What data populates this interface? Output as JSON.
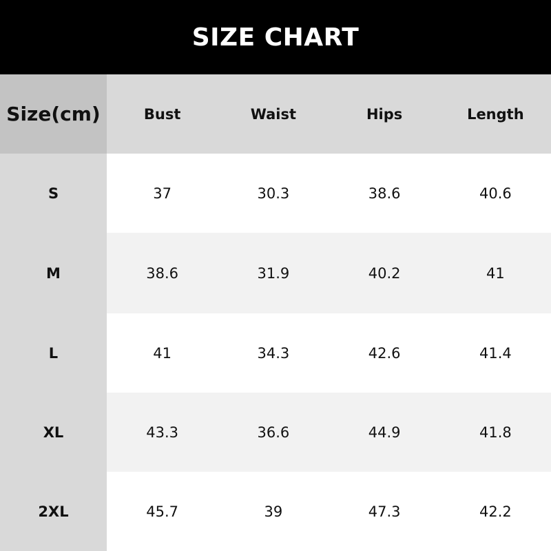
{
  "title": "SIZE CHART",
  "header": [
    "Size(cm)",
    "Bust",
    "Waist",
    "Hips",
    "Length"
  ],
  "rows": [
    [
      "S",
      "37",
      "30.3",
      "38.6",
      "40.6"
    ],
    [
      "M",
      "38.6",
      "31.9",
      "40.2",
      "41"
    ],
    [
      "L",
      "41",
      "34.3",
      "42.6",
      "41.4"
    ],
    [
      "XL",
      "43.3",
      "36.6",
      "44.9",
      "41.8"
    ],
    [
      "2XL",
      "45.7",
      "39",
      "47.3",
      "42.2"
    ]
  ]
}
